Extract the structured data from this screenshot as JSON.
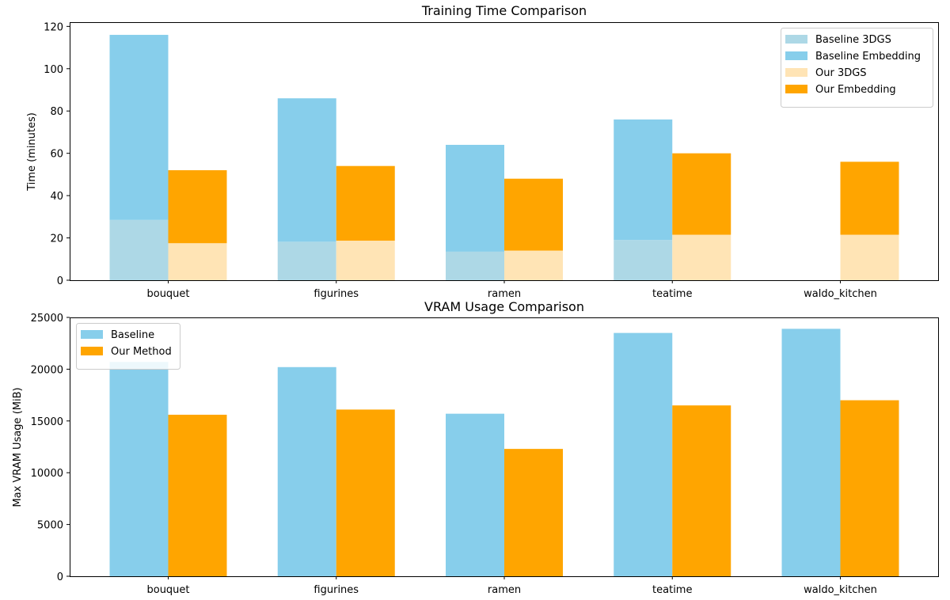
{
  "chart_data": [
    {
      "type": "bar",
      "stacked": true,
      "title": "Training Time Comparison",
      "xlabel": "",
      "ylabel": "Time (minutes)",
      "ylim": [
        0,
        122
      ],
      "yticks": [
        0,
        20,
        40,
        60,
        80,
        100,
        120
      ],
      "grid": false,
      "legend_position": "top-right",
      "categories": [
        "bouquet",
        "figurines",
        "ramen",
        "teatime",
        "waldo_kitchen"
      ],
      "series": [
        {
          "name": "Baseline 3DGS",
          "group": "baseline",
          "stack": "bottom",
          "color": "#add8e6",
          "values": [
            28.5,
            18.2,
            13.5,
            19.0,
            0
          ]
        },
        {
          "name": "Baseline Embedding",
          "group": "baseline",
          "stack": "top",
          "color": "#87ceeb",
          "values": [
            87.5,
            67.8,
            50.5,
            57.0,
            0
          ]
        },
        {
          "name": "Our 3DGS",
          "group": "ours",
          "stack": "bottom",
          "color": "#ffe4b5",
          "values": [
            17.5,
            18.7,
            14.0,
            21.5,
            21.5
          ]
        },
        {
          "name": "Our Embedding",
          "group": "ours",
          "stack": "top",
          "color": "#ffa500",
          "values": [
            34.5,
            35.3,
            34.0,
            38.5,
            34.5
          ]
        }
      ]
    },
    {
      "type": "bar",
      "stacked": false,
      "title": "VRAM Usage Comparison",
      "xlabel": "",
      "ylabel": "Max VRAM Usage (MiB)",
      "ylim": [
        0,
        25000
      ],
      "yticks": [
        0,
        5000,
        10000,
        15000,
        20000,
        25000
      ],
      "grid": false,
      "legend_position": "top-left",
      "categories": [
        "bouquet",
        "figurines",
        "ramen",
        "teatime",
        "waldo_kitchen"
      ],
      "series": [
        {
          "name": "Baseline",
          "group": "baseline",
          "color": "#87ceeb",
          "values": [
            20700,
            20200,
            15700,
            23500,
            23900
          ]
        },
        {
          "name": "Our Method",
          "group": "ours",
          "color": "#ffa500",
          "values": [
            15600,
            16100,
            12300,
            16500,
            17000
          ]
        }
      ]
    }
  ]
}
